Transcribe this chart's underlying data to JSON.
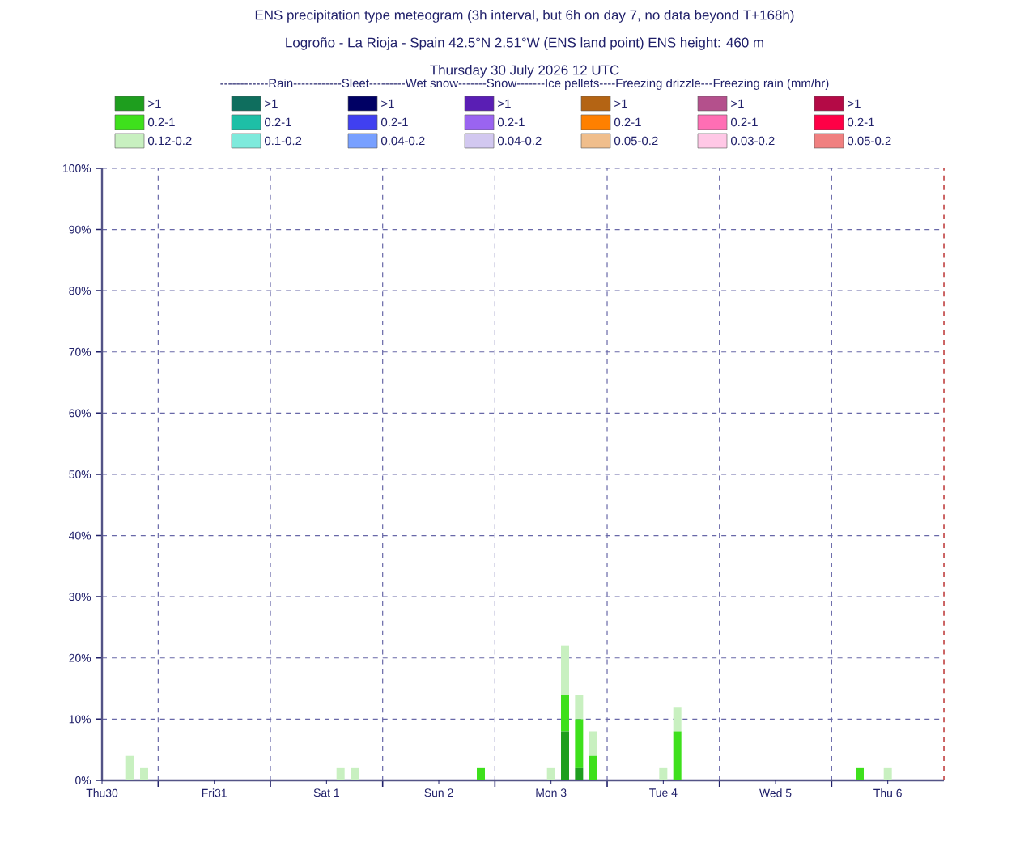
{
  "chart_data": {
    "type": "bar",
    "stacked": true,
    "title": "ENS precipitation type meteogram (3h interval, but 6h on day 7, no data beyond T+168h)",
    "subtitle": "Logroño - La Rioja - Spain 42.5°N 2.51°W (ENS land point) ENS height: 460 m",
    "annotations": [
      "Thursday 30 July 2026 12 UTC"
    ],
    "legend_title": "------------Rain------------Sleet---------Wet snow-------Snow-------Ice pellets----Freezing drizzle---Freezing rain (mm/hr)",
    "legend": "top",
    "grid": true,
    "x": [
      "2026-07-30T18:00",
      "2026-07-30T21:00",
      "2026-08-01T15:00",
      "2026-08-01T18:00",
      "2026-08-02T21:00",
      "2026-08-03T12:00",
      "2026-08-03T15:00",
      "2026-08-03T18:00",
      "2026-08-03T21:00",
      "2026-08-04T12:00",
      "2026-08-04T15:00",
      "2026-08-06T06:00",
      "2026-08-06T12:00"
    ],
    "xlim": [
      "2026-07-30T12:00",
      "2026-08-07T00:00"
    ],
    "ylim": [
      0,
      100
    ],
    "xticks": [
      {
        "value": "2026-07-30T12:00",
        "label": "Thu30"
      },
      {
        "value": "2026-07-31T00:00",
        "label": null
      },
      {
        "value": "2026-07-31T12:00",
        "label": "Fri31"
      },
      {
        "value": "2026-08-01T00:00",
        "label": null
      },
      {
        "value": "2026-08-01T12:00",
        "label": "Sat 1"
      },
      {
        "value": "2026-08-02T00:00",
        "label": null
      },
      {
        "value": "2026-08-02T12:00",
        "label": "Sun 2"
      },
      {
        "value": "2026-08-03T00:00",
        "label": null
      },
      {
        "value": "2026-08-03T12:00",
        "label": "Mon 3"
      },
      {
        "value": "2026-08-04T00:00",
        "label": null
      },
      {
        "value": "2026-08-04T12:00",
        "label": "Tue 4"
      },
      {
        "value": "2026-08-05T00:00",
        "label": null
      },
      {
        "value": "2026-08-05T12:00",
        "label": "Wed 5"
      },
      {
        "value": "2026-08-06T00:00",
        "label": null
      },
      {
        "value": "2026-08-06T12:00",
        "label": "Thu 6"
      }
    ],
    "yticks": [
      {
        "value": 0,
        "label": "0%"
      },
      {
        "value": 10,
        "label": "10%"
      },
      {
        "value": 20,
        "label": "20%"
      },
      {
        "value": 30,
        "label": "30%"
      },
      {
        "value": 40,
        "label": "40%"
      },
      {
        "value": 50,
        "label": "50%"
      },
      {
        "value": 60,
        "label": "60%"
      },
      {
        "value": 70,
        "label": "70%"
      },
      {
        "value": 80,
        "label": "80%"
      },
      {
        "value": 90,
        "label": "90%"
      },
      {
        "value": 100,
        "label": "100%"
      }
    ],
    "ref_lines": [
      {
        "axis": "x",
        "value": "2026-08-07T00:00",
        "color": "#c04040",
        "line_style": "dashed"
      }
    ],
    "series": [
      {
        "name": ">1",
        "color": "#1e9e1e",
        "values": [
          0,
          0,
          0,
          0,
          0,
          0,
          8,
          2,
          0,
          0,
          0,
          0,
          0
        ]
      },
      {
        "name": "0.2-1",
        "color": "#3ee01c",
        "values": [
          0,
          0,
          0,
          0,
          2,
          0,
          6,
          8,
          4,
          0,
          8,
          2,
          0
        ]
      },
      {
        "name": "0.12-0.2",
        "color": "#c8f0c0",
        "values": [
          4,
          2,
          2,
          2,
          0,
          2,
          8,
          4,
          4,
          2,
          4,
          0,
          2
        ]
      },
      {
        "name": ">1",
        "color": "#0f6e5e",
        "values": [
          null,
          null,
          null,
          null,
          null,
          null,
          null,
          null,
          null,
          null,
          null,
          null,
          null
        ]
      },
      {
        "name": "0.2-1",
        "color": "#1ebfa6",
        "values": [
          null,
          null,
          null,
          null,
          null,
          null,
          null,
          null,
          null,
          null,
          null,
          null,
          null
        ]
      },
      {
        "name": "0.1-0.2",
        "color": "#7eeadc",
        "values": [
          null,
          null,
          null,
          null,
          null,
          null,
          null,
          null,
          null,
          null,
          null,
          null,
          null
        ]
      },
      {
        "name": ">1",
        "color": "#000064",
        "values": [
          null,
          null,
          null,
          null,
          null,
          null,
          null,
          null,
          null,
          null,
          null,
          null,
          null
        ]
      },
      {
        "name": "0.2-1",
        "color": "#4040f0",
        "values": [
          null,
          null,
          null,
          null,
          null,
          null,
          null,
          null,
          null,
          null,
          null,
          null,
          null
        ]
      },
      {
        "name": "0.04-0.2",
        "color": "#78a0ff",
        "values": [
          null,
          null,
          null,
          null,
          null,
          null,
          null,
          null,
          null,
          null,
          null,
          null,
          null
        ]
      },
      {
        "name": ">1",
        "color": "#5a1eb4",
        "values": [
          null,
          null,
          null,
          null,
          null,
          null,
          null,
          null,
          null,
          null,
          null,
          null,
          null
        ]
      },
      {
        "name": "0.2-1",
        "color": "#9a64f0",
        "values": [
          null,
          null,
          null,
          null,
          null,
          null,
          null,
          null,
          null,
          null,
          null,
          null,
          null
        ]
      },
      {
        "name": "0.04-0.2",
        "color": "#d2c8f0",
        "values": [
          null,
          null,
          null,
          null,
          null,
          null,
          null,
          null,
          null,
          null,
          null,
          null,
          null
        ]
      },
      {
        "name": ">1",
        "color": "#b46414",
        "values": [
          null,
          null,
          null,
          null,
          null,
          null,
          null,
          null,
          null,
          null,
          null,
          null,
          null
        ]
      },
      {
        "name": "0.2-1",
        "color": "#ff8000",
        "values": [
          null,
          null,
          null,
          null,
          null,
          null,
          null,
          null,
          null,
          null,
          null,
          null,
          null
        ]
      },
      {
        "name": "0.05-0.2",
        "color": "#f0be8c",
        "values": [
          null,
          null,
          null,
          null,
          null,
          null,
          null,
          null,
          null,
          null,
          null,
          null,
          null
        ]
      },
      {
        "name": ">1",
        "color": "#b4508c",
        "values": [
          null,
          null,
          null,
          null,
          null,
          null,
          null,
          null,
          null,
          null,
          null,
          null,
          null
        ]
      },
      {
        "name": "0.2-1",
        "color": "#ff6eb4",
        "values": [
          null,
          null,
          null,
          null,
          null,
          null,
          null,
          null,
          null,
          null,
          null,
          null,
          null
        ]
      },
      {
        "name": "0.03-0.2",
        "color": "#ffc8e6",
        "values": [
          null,
          null,
          null,
          null,
          null,
          null,
          null,
          null,
          null,
          null,
          null,
          null,
          null
        ]
      },
      {
        "name": ">1",
        "color": "#b40a46",
        "values": [
          null,
          null,
          null,
          null,
          null,
          null,
          null,
          null,
          null,
          null,
          null,
          null,
          null
        ]
      },
      {
        "name": "0.2-1",
        "color": "#ff0046",
        "values": [
          null,
          null,
          null,
          null,
          null,
          null,
          null,
          null,
          null,
          null,
          null,
          null,
          null
        ]
      },
      {
        "name": "0.05-0.2",
        "color": "#f08080",
        "values": [
          null,
          null,
          null,
          null,
          null,
          null,
          null,
          null,
          null,
          null,
          null,
          null,
          null
        ]
      }
    ]
  }
}
